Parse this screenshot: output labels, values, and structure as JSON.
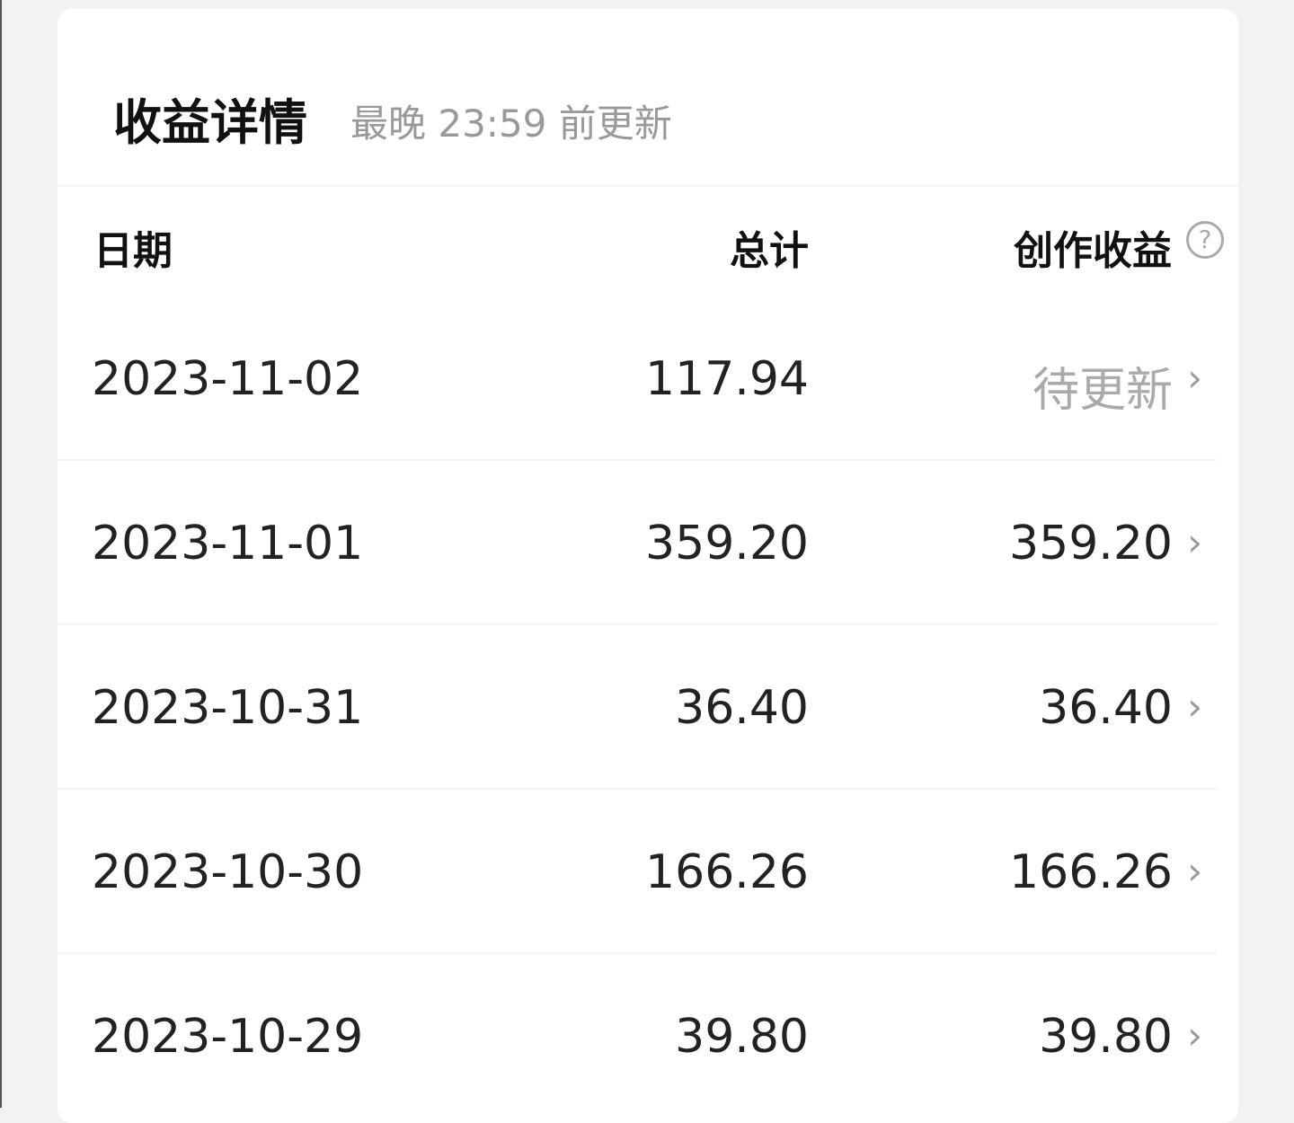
{
  "header": {
    "title": "收益详情",
    "subtitle": "最晚 23:59 前更新"
  },
  "columns": {
    "date": "日期",
    "total": "总计",
    "creator": "创作收益",
    "help_icon": "question-circle-icon"
  },
  "rows": [
    {
      "date": "2023-11-02",
      "total": "117.94",
      "creator": "待更新",
      "pending": true
    },
    {
      "date": "2023-11-01",
      "total": "359.20",
      "creator": "359.20"
    },
    {
      "date": "2023-10-31",
      "total": "36.40",
      "creator": "36.40"
    },
    {
      "date": "2023-10-30",
      "total": "166.26",
      "creator": "166.26"
    },
    {
      "date": "2023-10-29",
      "total": "39.80",
      "creator": "39.80"
    }
  ],
  "chevron": "›",
  "help": "?"
}
